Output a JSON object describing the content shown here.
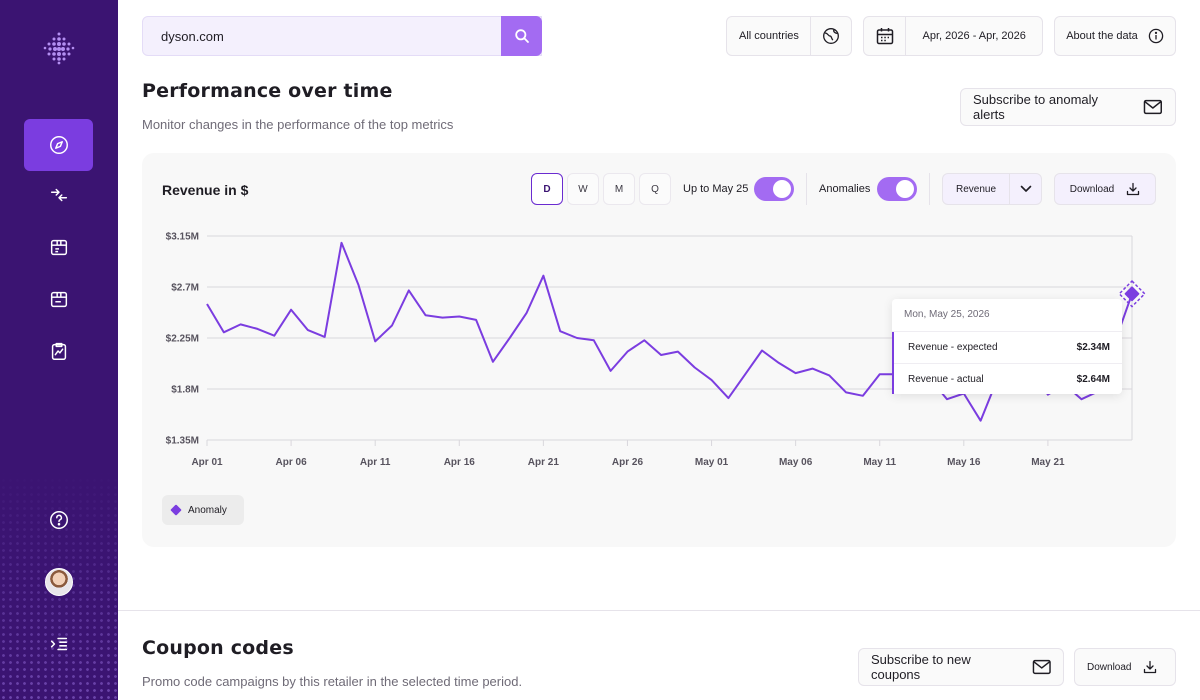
{
  "search": {
    "value": "dyson.com"
  },
  "header": {
    "country": "All countries",
    "date_range": "Apr, 2026 - Apr, 2026",
    "about": "About the data"
  },
  "performance": {
    "title": "Performance over time",
    "subtitle": "Monitor changes in the performance of the top metrics",
    "subscribe_label": "Subscribe to anomaly alerts"
  },
  "card": {
    "title": "Revenue in $",
    "periods": [
      "D",
      "W",
      "M",
      "Q"
    ],
    "active_period": "D",
    "upto_label": "Up to May 25",
    "anomalies_label": "Anomalies",
    "metric_select": "Revenue",
    "download_label": "Download",
    "legend_label": "Anomaly"
  },
  "tooltip": {
    "date": "Mon, May 25, 2026",
    "rows": [
      {
        "label": "Revenue - expected",
        "value": "$2.34M"
      },
      {
        "label": "Revenue - actual",
        "value": "$2.64M"
      }
    ]
  },
  "coupons": {
    "title": "Coupon codes",
    "subtitle": "Promo code campaigns by this retailer in the selected time period.",
    "subscribe_label": "Subscribe to new coupons",
    "download_label": "Download"
  },
  "colors": {
    "accent": "#7b3de0",
    "sidebar": "#3b1472",
    "toggle": "#a36bf2"
  },
  "chart_data": {
    "type": "line",
    "title": "Revenue in $",
    "x_tick_labels": [
      "Apr 01",
      "Apr 06",
      "Apr 11",
      "Apr 16",
      "Apr 21",
      "Apr 26",
      "May 01",
      "May 06",
      "May 11",
      "May 16",
      "May 21"
    ],
    "y_tick_labels": [
      "$3.15M",
      "$2.7M",
      "$2.25M",
      "$1.8M",
      "$1.35M"
    ],
    "ylim": [
      1.35,
      3.15
    ],
    "grid": true,
    "legend": "bottom-left",
    "series": [
      {
        "values": [
          2.55,
          2.3,
          2.37,
          2.33,
          2.27,
          2.5,
          2.32,
          2.26,
          3.09,
          2.72,
          2.22,
          2.36,
          2.67,
          2.45,
          2.43,
          2.44,
          2.41,
          2.04,
          2.25,
          2.47,
          2.8,
          2.31,
          2.25,
          2.23,
          1.96,
          2.13,
          2.23,
          2.1,
          2.13,
          1.99,
          1.88,
          1.72,
          1.93,
          2.14,
          2.03,
          1.94,
          1.98,
          1.92,
          1.77,
          1.74,
          1.93,
          1.93,
          1.99,
          1.89,
          1.71,
          1.76,
          1.52,
          1.89,
          1.92,
          1.96,
          1.75,
          1.84,
          1.71,
          1.78,
          2.22,
          2.64
        ]
      }
    ],
    "anomaly": {
      "x": "May 25",
      "y": 2.64
    }
  }
}
